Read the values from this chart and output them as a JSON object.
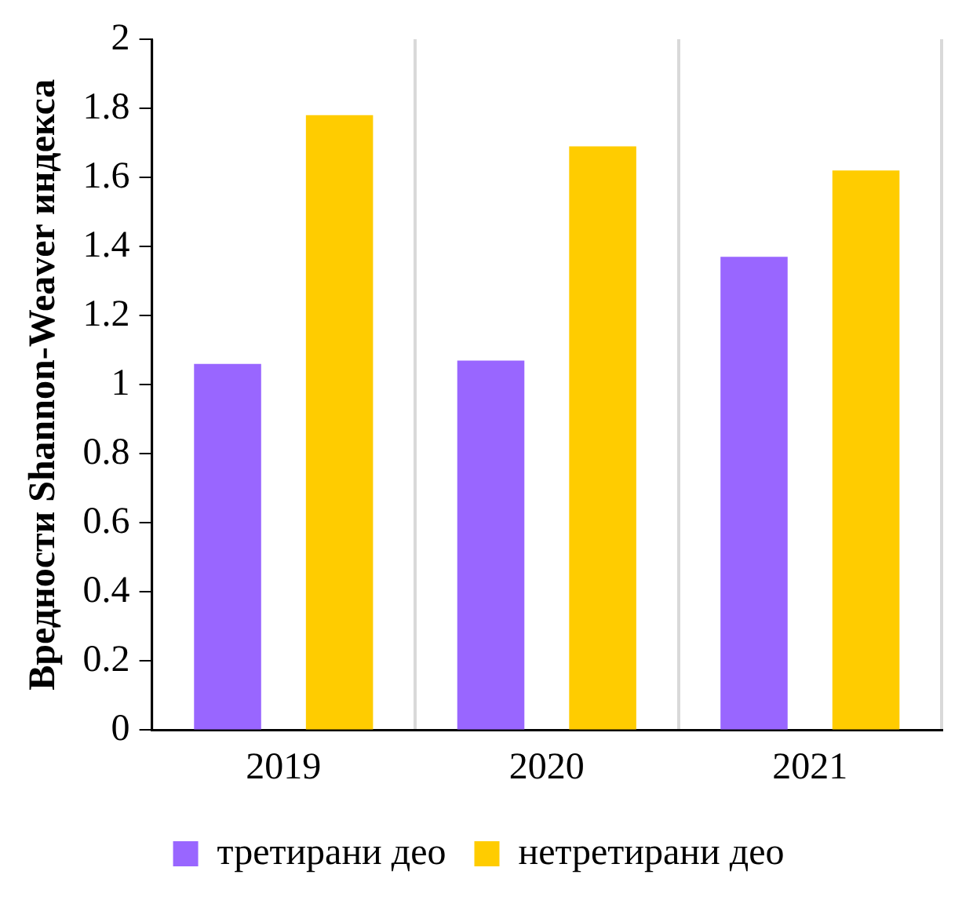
{
  "chart_data": {
    "type": "bar",
    "ylabel": "Вредности Shannon-Weaver индекса",
    "categories": [
      "2019",
      "2020",
      "2021"
    ],
    "series": [
      {
        "name": "третирани део",
        "color": "#9966ff",
        "values": [
          1.06,
          1.07,
          1.37
        ]
      },
      {
        "name": "нетретирани део",
        "color": "#ffcc00",
        "values": [
          1.78,
          1.69,
          1.62
        ]
      }
    ],
    "ylim": [
      0,
      2
    ],
    "yticks": [
      0,
      0.2,
      0.4,
      0.6,
      0.8,
      1,
      1.2,
      1.4,
      1.6,
      1.8,
      2
    ],
    "grid": "x",
    "legend": "bottom"
  }
}
